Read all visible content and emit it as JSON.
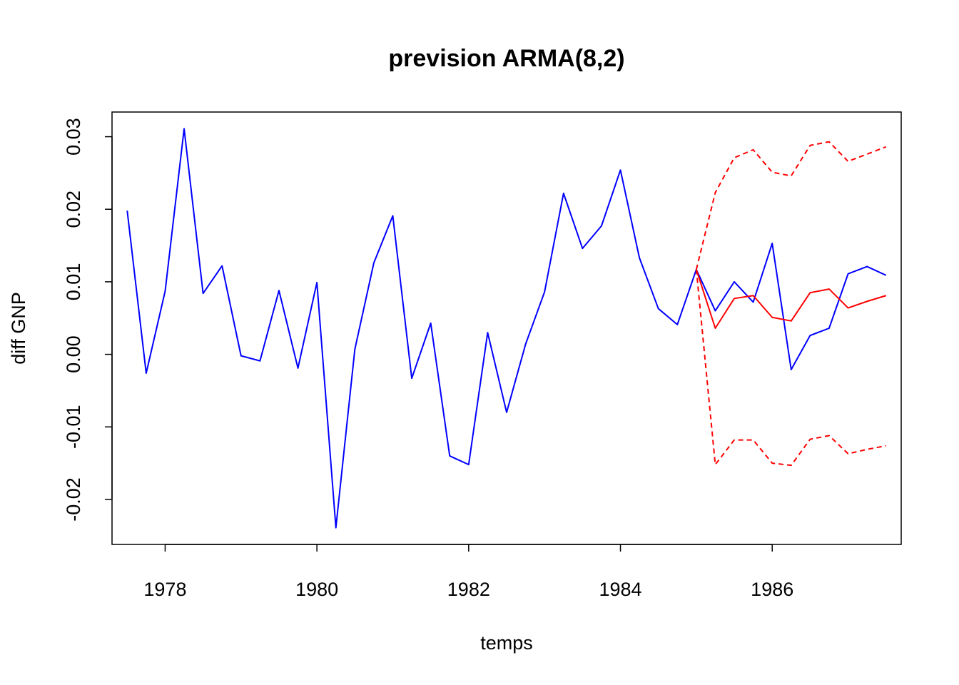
{
  "chart_data": {
    "type": "line",
    "title": "prevision ARMA(8,2)",
    "xlabel": "temps",
    "ylabel": "diff GNP",
    "xlim": [
      1977.3,
      1987.7
    ],
    "ylim": [
      -0.0262,
      0.0334
    ],
    "x_ticks": [
      1978,
      1980,
      1982,
      1984,
      1986
    ],
    "y_ticks": [
      -0.02,
      -0.01,
      0.0,
      0.01,
      0.02,
      0.03
    ],
    "y_tick_labels": [
      "-0.02",
      "-0.01",
      "0.00",
      "0.01",
      "0.02",
      "0.03"
    ],
    "grid": false,
    "legend": "none",
    "series": [
      {
        "color": "#0000ff",
        "dash": "solid",
        "x": [
          1977.5,
          1977.75,
          1978.0,
          1978.25,
          1978.5,
          1978.75,
          1979.0,
          1979.25,
          1979.5,
          1979.75,
          1980.0,
          1980.25,
          1980.5,
          1980.75,
          1981.0,
          1981.25,
          1981.5,
          1981.75,
          1982.0,
          1982.25,
          1982.5,
          1982.75,
          1983.0,
          1983.25,
          1983.5,
          1983.75,
          1984.0,
          1984.25,
          1984.5,
          1984.75,
          1985.0,
          1985.25,
          1985.5,
          1985.75,
          1986.0,
          1986.25,
          1986.5,
          1986.75,
          1987.0,
          1987.25,
          1987.5
        ],
        "y": [
          0.0198,
          -0.0026,
          0.0087,
          0.0311,
          0.0084,
          0.0122,
          -0.0002,
          -0.0009,
          0.0088,
          -0.0019,
          0.0099,
          -0.0239,
          0.0007,
          0.0126,
          0.0191,
          -0.0033,
          0.0043,
          -0.014,
          -0.0152,
          0.003,
          -0.008,
          0.0014,
          0.0086,
          0.0222,
          0.0146,
          0.0177,
          0.0254,
          0.0133,
          0.0063,
          0.0041,
          0.0117,
          0.006,
          0.01,
          0.0072,
          0.0153,
          -0.0021,
          0.0026,
          0.0036,
          0.0111,
          0.0121,
          0.0109
        ]
      },
      {
        "color": "#ff0000",
        "dash": "solid",
        "x": [
          1985.0,
          1985.25,
          1985.5,
          1985.75,
          1986.0,
          1986.25,
          1986.5,
          1986.75,
          1987.0,
          1987.25,
          1987.5
        ],
        "y": [
          0.0117,
          0.0036,
          0.0077,
          0.0081,
          0.0051,
          0.0046,
          0.0085,
          0.009,
          0.0064,
          0.0073,
          0.0081
        ]
      },
      {
        "color": "#ff0000",
        "dash": "dashed",
        "x": [
          1985.0,
          1985.25,
          1985.5,
          1985.75,
          1986.0,
          1986.25,
          1986.5,
          1986.75,
          1987.0,
          1987.25,
          1987.5
        ],
        "y": [
          0.0117,
          0.0223,
          0.0271,
          0.0282,
          0.0251,
          0.0246,
          0.0288,
          0.0293,
          0.0266,
          0.0276,
          0.0286
        ]
      },
      {
        "color": "#ff0000",
        "dash": "dashed",
        "x": [
          1985.0,
          1985.25,
          1985.5,
          1985.75,
          1986.0,
          1986.25,
          1986.5,
          1986.75,
          1987.0,
          1987.25,
          1987.5
        ],
        "y": [
          0.0117,
          -0.0152,
          -0.0118,
          -0.0118,
          -0.015,
          -0.0153,
          -0.0117,
          -0.0112,
          -0.0137,
          -0.0131,
          -0.0126
        ]
      }
    ]
  }
}
